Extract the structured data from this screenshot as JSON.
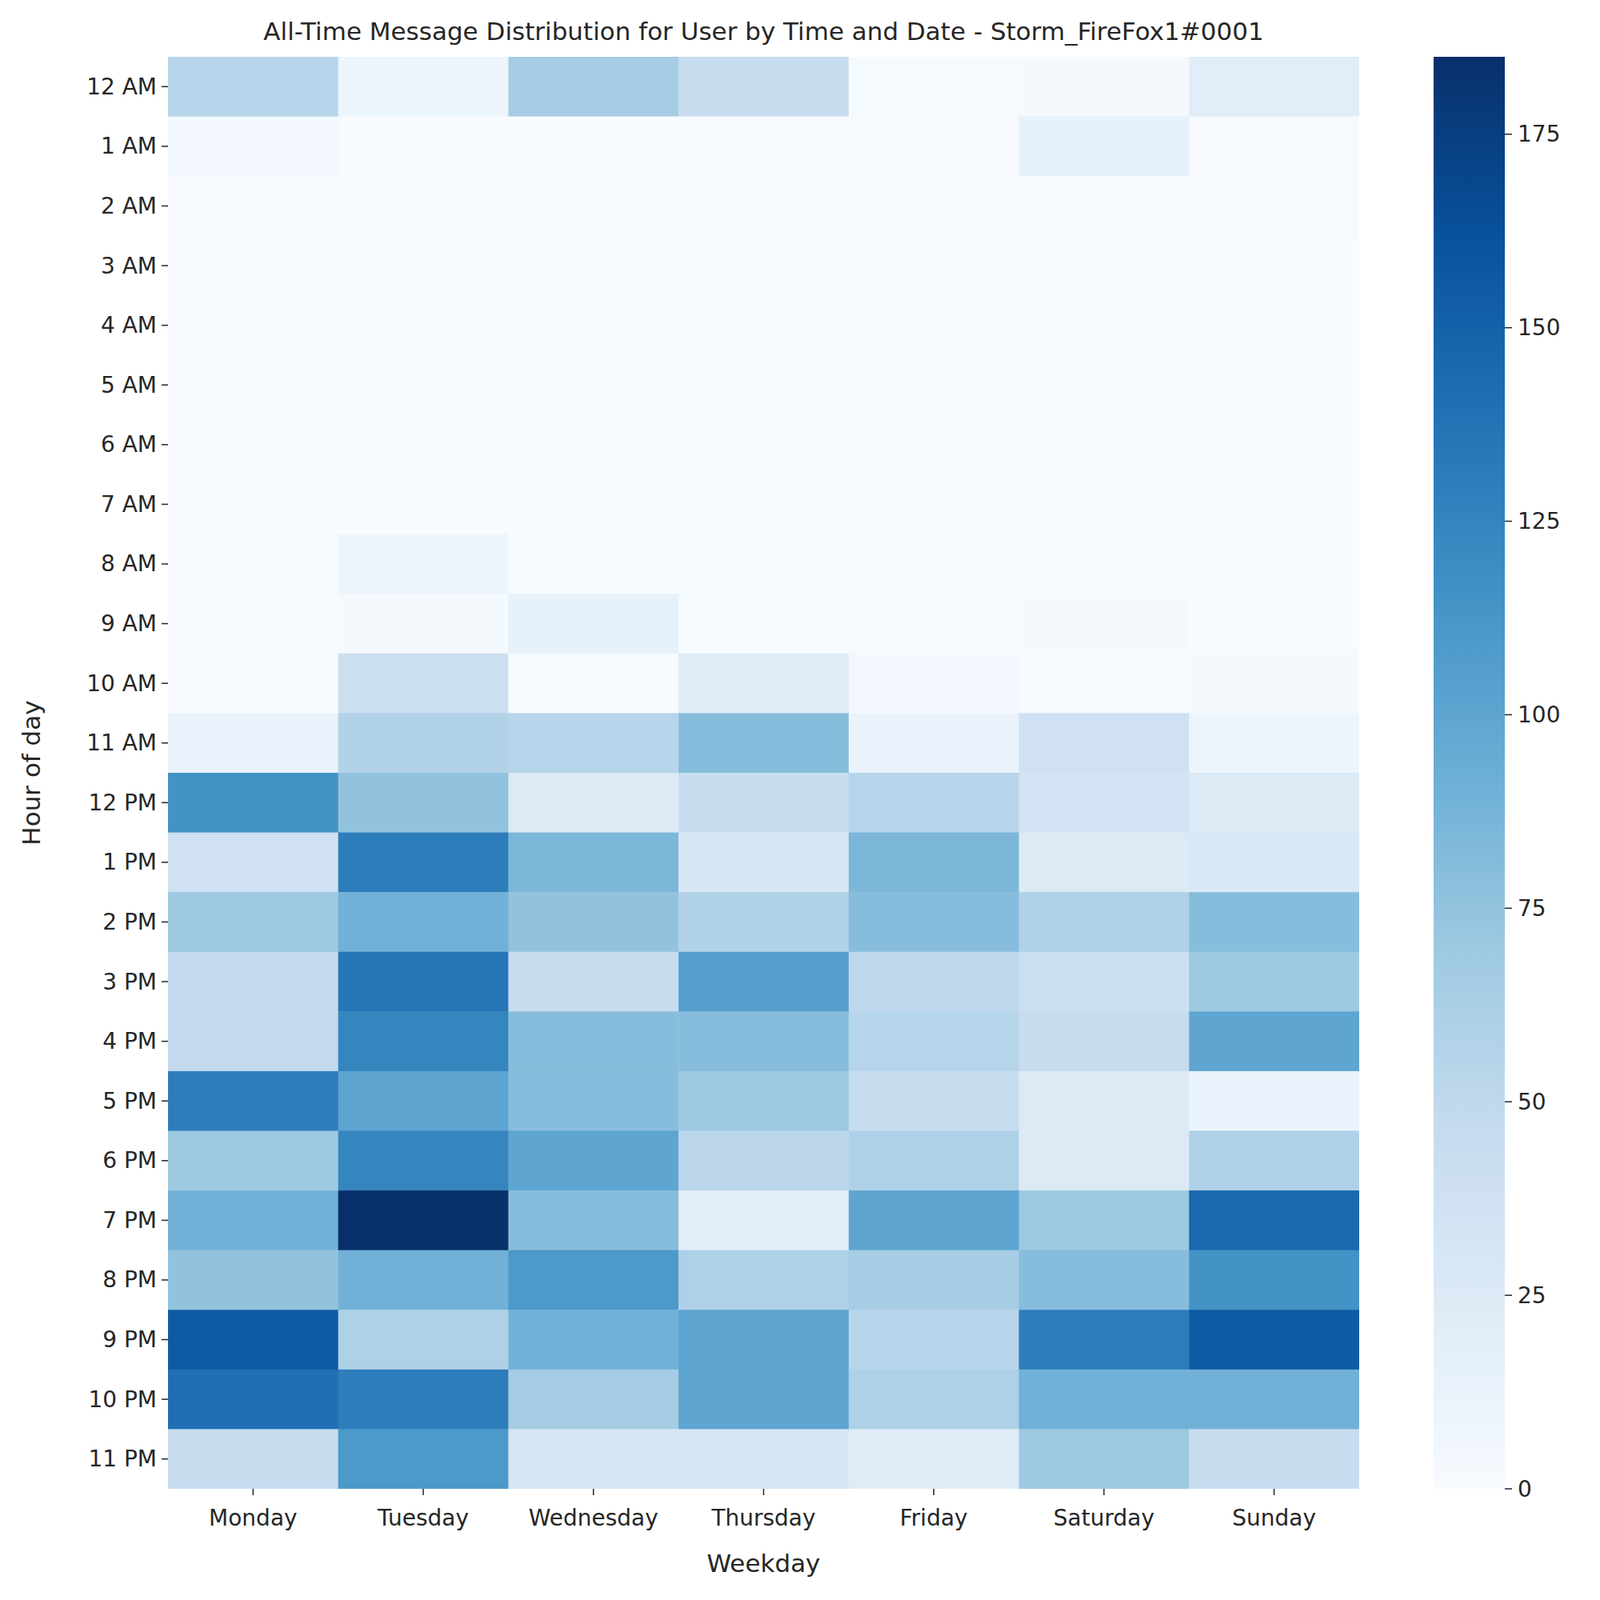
{
  "chart_data": {
    "type": "heatmap",
    "title": "All-Time Message Distribution for User by Time and Date - Storm_FireFox1#0001",
    "x_label": "Weekday",
    "y_label": "Hour of day",
    "x": [
      "Monday",
      "Tuesday",
      "Wednesday",
      "Thursday",
      "Friday",
      "Saturday",
      "Sunday"
    ],
    "y": [
      "12 AM",
      "1 AM",
      "2 AM",
      "3 AM",
      "4 AM",
      "5 AM",
      "6 AM",
      "7 AM",
      "8 AM",
      "9 AM",
      "10 AM",
      "11 AM",
      "12 PM",
      "1 PM",
      "2 PM",
      "3 PM",
      "4 PM",
      "5 PM",
      "6 PM",
      "7 PM",
      "8 PM",
      "9 PM",
      "10 PM",
      "11 PM"
    ],
    "values": [
      [
        55,
        10,
        65,
        45,
        2,
        3,
        20
      ],
      [
        5,
        0,
        0,
        1,
        1,
        15,
        1
      ],
      [
        0,
        0,
        0,
        0,
        0,
        0,
        1
      ],
      [
        0,
        0,
        0,
        0,
        0,
        0,
        0
      ],
      [
        0,
        0,
        0,
        0,
        0,
        0,
        0
      ],
      [
        0,
        0,
        0,
        0,
        0,
        0,
        0
      ],
      [
        0,
        0,
        0,
        0,
        0,
        0,
        0
      ],
      [
        0,
        0,
        0,
        2,
        0,
        2,
        0
      ],
      [
        0,
        10,
        0,
        1,
        0,
        0,
        0
      ],
      [
        1,
        3,
        15,
        2,
        1,
        3,
        0
      ],
      [
        1,
        40,
        2,
        22,
        5,
        1,
        3
      ],
      [
        12,
        58,
        55,
        80,
        12,
        38,
        10
      ],
      [
        115,
        75,
        25,
        45,
        55,
        35,
        25
      ],
      [
        38,
        130,
        85,
        30,
        85,
        25,
        28
      ],
      [
        70,
        90,
        75,
        58,
        80,
        60,
        80
      ],
      [
        48,
        135,
        45,
        105,
        50,
        40,
        70
      ],
      [
        48,
        125,
        80,
        80,
        55,
        45,
        100
      ],
      [
        130,
        100,
        80,
        70,
        45,
        25,
        12
      ],
      [
        70,
        125,
        100,
        52,
        60,
        25,
        60
      ],
      [
        90,
        185,
        80,
        20,
        100,
        70,
        145
      ],
      [
        75,
        90,
        110,
        60,
        65,
        80,
        115
      ],
      [
        155,
        60,
        90,
        100,
        55,
        130,
        155
      ],
      [
        140,
        130,
        65,
        100,
        60,
        90,
        90
      ],
      [
        45,
        110,
        30,
        30,
        22,
        70,
        45
      ]
    ],
    "color": "Blues",
    "colorbar": {
      "range": [
        0,
        185
      ],
      "ticks": [
        0,
        25,
        50,
        75,
        100,
        125,
        150,
        175
      ]
    }
  }
}
